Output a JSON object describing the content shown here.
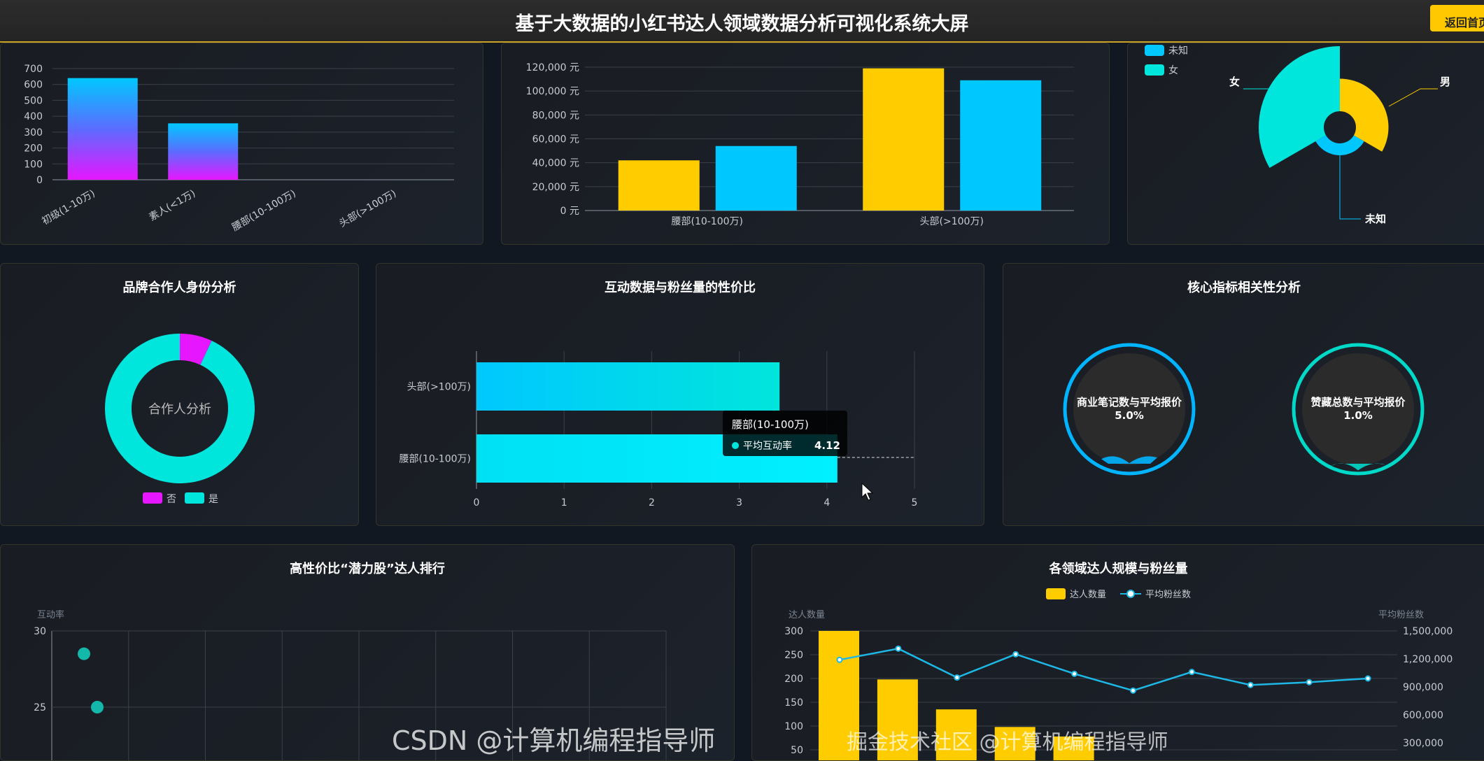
{
  "header": {
    "title": "基于大数据的小红书达人领域数据分析可视化系统大屏",
    "home_button": "返回首页"
  },
  "colors": {
    "yellow": "#ffcc00",
    "blue": "#00c8ff",
    "cyan": "#00e5dc",
    "magenta": "#e616ff",
    "gold_line": "#c9a227"
  },
  "chart_data": [
    {
      "id": "level_count",
      "type": "bar",
      "categories": [
        "初级(1-10万)",
        "素人(<1万)",
        "腰部(10-100万)",
        "头部(>100万)"
      ],
      "values": [
        640,
        355,
        0,
        0
      ],
      "ylim": [
        0,
        700
      ],
      "yticks": [
        0,
        100,
        200,
        300,
        400,
        500,
        600,
        700
      ],
      "grid": true
    },
    {
      "id": "level_price",
      "type": "bar",
      "categories": [
        "腰部(10-100万)",
        "头部(>100万)"
      ],
      "series": [
        {
          "values": [
            42000,
            119000
          ],
          "color": "#ffcc00"
        },
        {
          "values": [
            54000,
            109000
          ],
          "color": "#00c8ff"
        }
      ],
      "ylim": [
        0,
        120000
      ],
      "yticks": [
        "0 元",
        "20,000 元",
        "40,000 元",
        "60,000 元",
        "80,000 元",
        "100,000 元",
        "120,000 元"
      ],
      "grid": true
    },
    {
      "id": "gender_rose",
      "type": "pie",
      "rose": true,
      "legend": [
        "未知",
        "女"
      ],
      "slices": [
        {
          "name": "男",
          "value": 150,
          "color": "#ffcc00"
        },
        {
          "name": "未知",
          "value": 20,
          "color": "#00c8ff"
        },
        {
          "name": "女",
          "value": 600,
          "color": "#00e5dc"
        }
      ]
    },
    {
      "id": "partner_donut",
      "type": "pie",
      "title": "品牌合作人身份分析",
      "center_text": "合作人分析",
      "slices": [
        {
          "name": "否",
          "value": 7,
          "color": "#e616ff"
        },
        {
          "name": "是",
          "value": 93,
          "color": "#00e5dc"
        }
      ],
      "legend": [
        "否",
        "是"
      ],
      "legend_placement": "bottom"
    },
    {
      "id": "engagement_bar",
      "type": "bar",
      "orientation": "horizontal",
      "title": "互动数据与粉丝量的性价比",
      "categories": [
        "头部(>100万)",
        "腰部(10-100万)"
      ],
      "values": [
        3.46,
        4.12
      ],
      "xlim": [
        0,
        5
      ],
      "xticks": [
        "0",
        "1",
        "2",
        "3",
        "4",
        "5"
      ],
      "tooltip": {
        "category": "腰部(10-100万)",
        "series": "平均互动率",
        "value": "4.12"
      }
    },
    {
      "id": "correlation",
      "type": "gauge",
      "title": "核心指标相关性分析",
      "items": [
        {
          "label": "商业笔记数与平均报价",
          "value": "5.0%",
          "percent": 5,
          "color": "#00b4ff"
        },
        {
          "label": "赞藏总数与平均报价",
          "value": "1.0%",
          "percent": 1,
          "color": "#00d8c8"
        }
      ]
    },
    {
      "id": "potential_scatter",
      "type": "scatter",
      "title": "高性价比“潜力股”达人排行",
      "ylabel": "互动率",
      "yticks": [
        "30",
        "25"
      ],
      "points_y": [
        28.5,
        25
      ],
      "grid": true
    },
    {
      "id": "field_scale",
      "type": "bar",
      "title": "各领域达人规模与粉丝量",
      "legend": [
        "达人数量",
        "平均粉丝数"
      ],
      "legend_placement": "top",
      "ylabel_left": "达人数量",
      "ylabel_right": "平均粉丝数",
      "yticks_left": [
        "300",
        "250",
        "200",
        "150",
        "100",
        "50"
      ],
      "yticks_right": [
        "1,500,000",
        "1,200,000",
        "900,000",
        "600,000",
        "300,000"
      ],
      "series": [
        {
          "name": "达人数量",
          "type": "bar",
          "values": [
            300,
            198,
            135,
            98,
            78,
            null,
            null,
            null,
            null,
            null
          ],
          "color": "#ffcc00"
        },
        {
          "name": "平均粉丝数",
          "type": "line",
          "values": [
            1190000,
            1310000,
            1000000,
            1250000,
            1040000,
            860000,
            1060000,
            920000,
            950000,
            990000
          ],
          "color": "#1eb8e6"
        }
      ]
    }
  ],
  "watermark": {
    "csdn": "CSDN @计算机编程指导师",
    "juejin": "掘金技术社区 @计算机编程指导师"
  }
}
